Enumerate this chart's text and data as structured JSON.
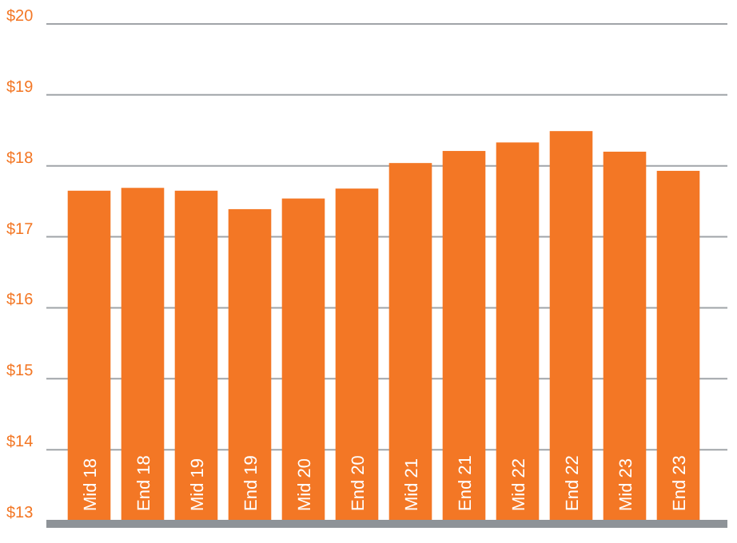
{
  "chart_data": {
    "type": "bar",
    "categories": [
      "Mid 18",
      "End 18",
      "Mid 19",
      "End 19",
      "Mid 20",
      "End 20",
      "Mid 21",
      "End 21",
      "Mid 22",
      "End 22",
      "Mid 23",
      "End 23"
    ],
    "values": [
      17.65,
      17.69,
      17.65,
      17.39,
      17.54,
      17.68,
      18.04,
      18.21,
      18.33,
      18.49,
      18.2,
      17.93
    ],
    "color": "#f37725",
    "ylim": [
      13,
      20
    ],
    "yticks": [
      {
        "value": 13,
        "label": "$13"
      },
      {
        "value": 14,
        "label": "$14"
      },
      {
        "value": 15,
        "label": "$15"
      },
      {
        "value": 16,
        "label": "$16"
      },
      {
        "value": 17,
        "label": "$17"
      },
      {
        "value": 18,
        "label": "$18"
      },
      {
        "value": 19,
        "label": "$19"
      },
      {
        "value": 20,
        "label": "$20"
      }
    ],
    "grid": "y"
  }
}
